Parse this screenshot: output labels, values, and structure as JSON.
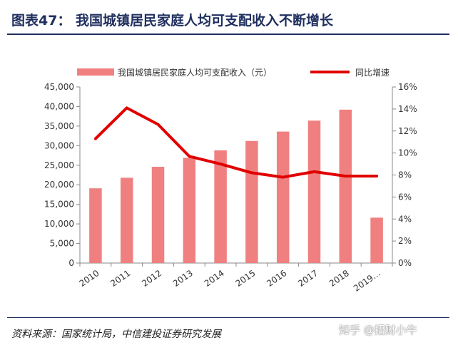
{
  "title": "图表47：  我国城镇居民家庭人均可支配收入不断增长",
  "source": "资料来源：国家统计局，中信建投证券研究发展",
  "watermark": "知乎 @招财小牛",
  "colors": {
    "bar": "#f08080",
    "line": "#e00000",
    "title": "#1f2f5e"
  },
  "chart_data": {
    "type": "bar",
    "categories": [
      "2010",
      "2011",
      "2012",
      "2013",
      "2014",
      "2015",
      "2016",
      "2017",
      "2018",
      "2019…"
    ],
    "series": [
      {
        "name": "我国城镇居民家庭人均可支配收入（元）",
        "type": "bar",
        "axis": "left",
        "values": [
          19100,
          21800,
          24600,
          26900,
          28800,
          31200,
          33600,
          36400,
          39200,
          11600
        ]
      },
      {
        "name": "同比增速",
        "type": "line",
        "axis": "right",
        "values": [
          11.3,
          14.1,
          12.6,
          9.7,
          9.0,
          8.2,
          7.8,
          8.3,
          7.9,
          7.9
        ]
      }
    ],
    "y_left": {
      "min": 0,
      "max": 45000,
      "step": 5000,
      "tick_labels": [
        "0",
        "5,000",
        "10,000",
        "15,000",
        "20,000",
        "25,000",
        "30,000",
        "35,000",
        "40,000",
        "45,000"
      ]
    },
    "y_right": {
      "min": 0,
      "max": 16,
      "step": 2,
      "tick_labels": [
        "0%",
        "2%",
        "4%",
        "6%",
        "8%",
        "10%",
        "12%",
        "14%",
        "16%"
      ]
    },
    "legend_position": "top",
    "grid": false
  }
}
